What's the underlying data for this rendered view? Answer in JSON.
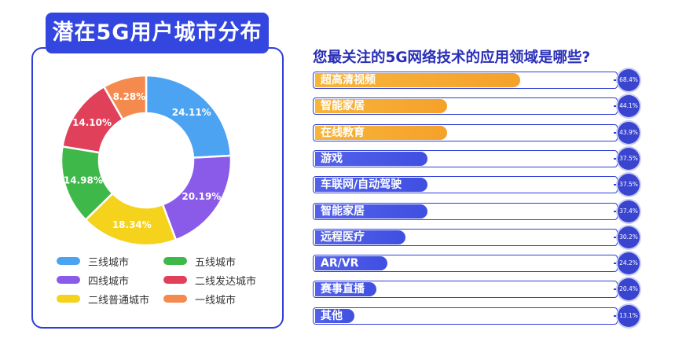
{
  "left_title": "潜在5G用户城市分布",
  "right_title": "您最关注的5G网络技术的应用领域是哪些?",
  "colors": {
    "frame": "#2f3fd6",
    "title_bg": "#3446e0",
    "orange_bar": "#f5a12a",
    "blue_bar": "#3f4fe0",
    "value_bubble": "#3a45cf"
  },
  "chart_data": [
    {
      "type": "pie",
      "title": "潜在5G用户城市分布",
      "variant": "donut",
      "slices": [
        {
          "label": "三线城市",
          "value": 24.11,
          "text": "24.11%",
          "color": "#4ba3f2"
        },
        {
          "label": "四线城市",
          "value": 20.19,
          "text": "20.19%",
          "color": "#8a5ae8"
        },
        {
          "label": "二线普通城市",
          "value": 18.34,
          "text": "18.34%",
          "color": "#f5d21c"
        },
        {
          "label": "五线城市",
          "value": 14.98,
          "text": "14.98%",
          "color": "#3fb84a"
        },
        {
          "label": "二线发达城市",
          "value": 14.1,
          "text": "14.10%",
          "color": "#e0405a"
        },
        {
          "label": "一线城市",
          "value": 8.28,
          "text": "8.28%",
          "color": "#f58a4f"
        }
      ],
      "legend": [
        {
          "label": "三线城市",
          "color": "#4ba3f2"
        },
        {
          "label": "五线城市",
          "color": "#3fb84a"
        },
        {
          "label": "四线城市",
          "color": "#8a5ae8"
        },
        {
          "label": "二线发达城市",
          "color": "#e0405a"
        },
        {
          "label": "二线普通城市",
          "color": "#f5d21c"
        },
        {
          "label": "一线城市",
          "color": "#f58a4f"
        }
      ]
    },
    {
      "type": "bar",
      "orientation": "horizontal",
      "title": "您最关注的5G网络技术的应用领域是哪些?",
      "xlim": [
        0,
        100
      ],
      "categories": [
        "超高清视频",
        "智能家居",
        "在线教育",
        "游戏",
        "车联网/自动驾驶",
        "智能家居",
        "远程医疗",
        "AR/VR",
        "赛事直播",
        "其他"
      ],
      "values": [
        68.4,
        44.1,
        43.9,
        37.5,
        37.5,
        37.4,
        30.2,
        24.2,
        20.4,
        13.1
      ],
      "value_labels": [
        "68.4%",
        "44.1%",
        "43.9%",
        "37.5%",
        "37.5%",
        "37.4%",
        "30.2%",
        "24.2%",
        "20.4%",
        "13.1%"
      ],
      "highlight_top_n": 3
    }
  ]
}
